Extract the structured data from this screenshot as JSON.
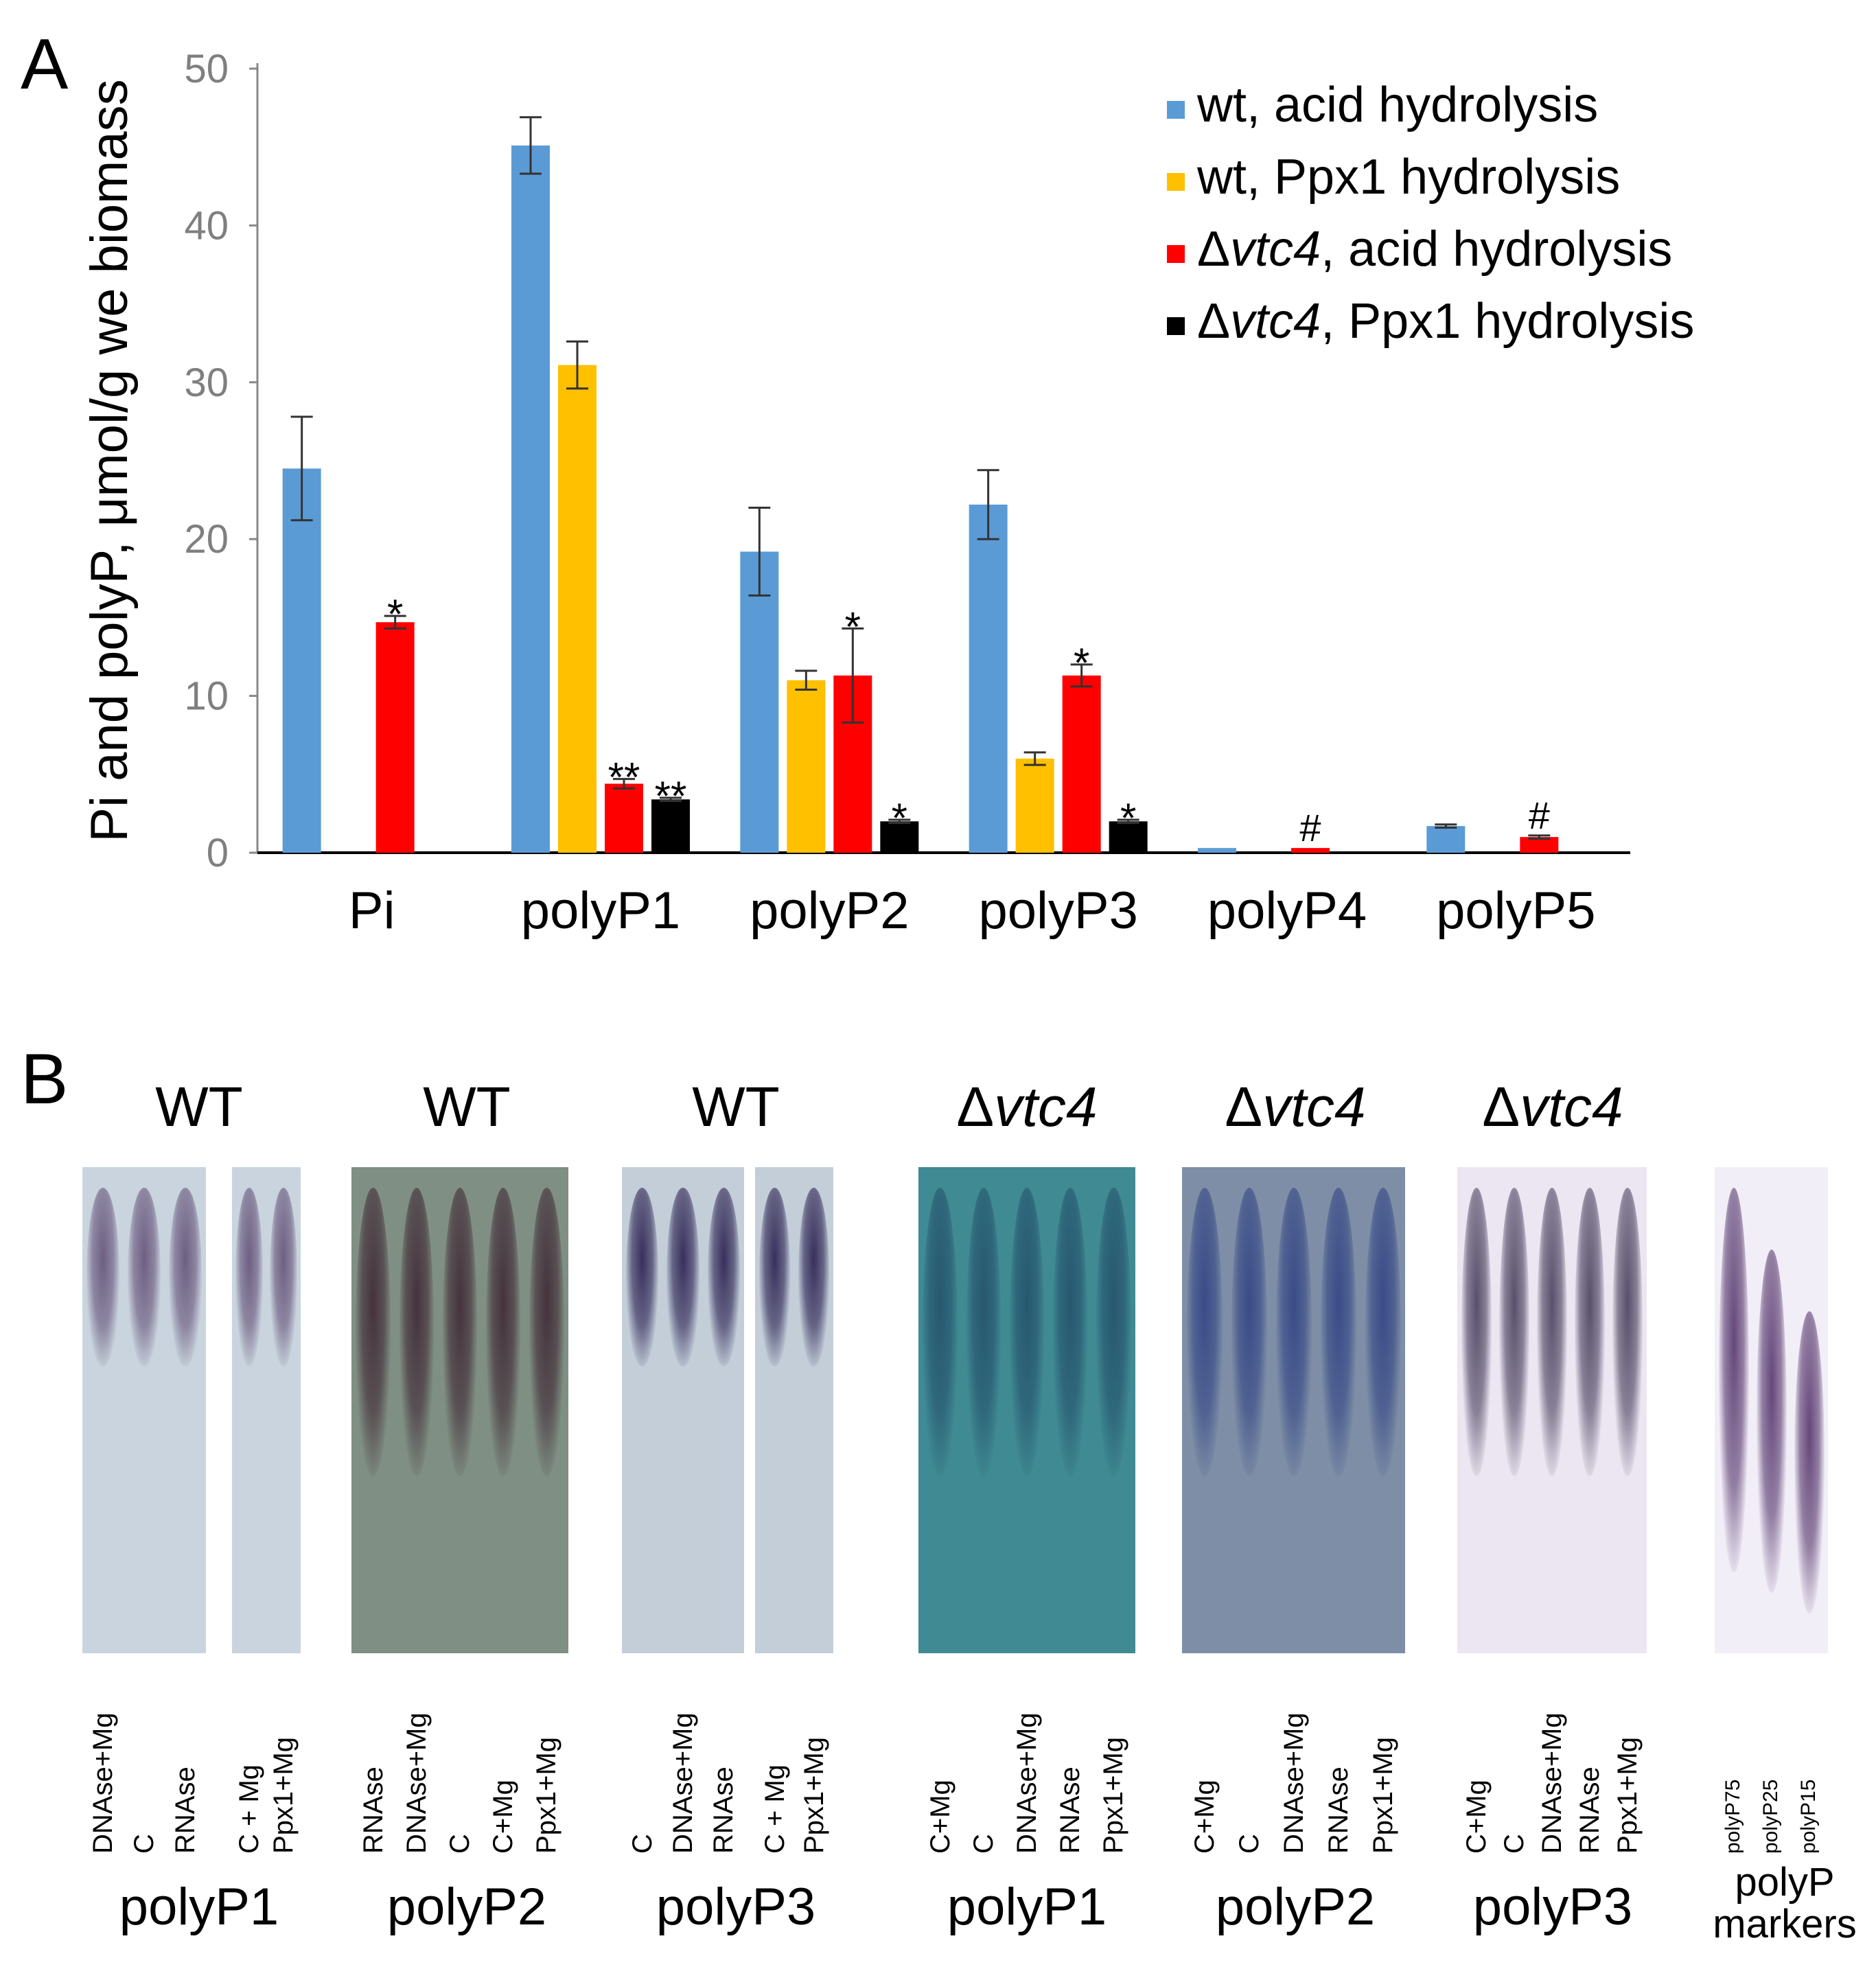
{
  "panel_a": {
    "letter": "A"
  },
  "panel_b": {
    "letter": "B"
  },
  "chart_data": {
    "type": "bar",
    "title": "",
    "xlabel": "",
    "ylabel": "Pi and polyP, μmol/g we biomass",
    "ylim": [
      0,
      50
    ],
    "yticks": [
      0,
      10,
      20,
      30,
      40,
      50
    ],
    "grid": false,
    "legend_position": "top-right",
    "categories": [
      "Pi",
      "polyP1",
      "polyP2",
      "polyP3",
      "polyP4",
      "polyP5"
    ],
    "series": [
      {
        "name": "wt, acid hydrolysis",
        "color": "#5b9bd5",
        "values": [
          24.5,
          45.1,
          19.2,
          22.2,
          0.3,
          1.7
        ],
        "errors": [
          3.3,
          1.8,
          2.8,
          2.2,
          0.0,
          0.1
        ],
        "annotations": [
          "",
          "",
          "",
          "",
          "",
          ""
        ]
      },
      {
        "name": "wt, Ppx1 hydrolysis",
        "color": "#ffc000",
        "values": [
          0,
          31.1,
          11.0,
          6.0,
          0,
          0
        ],
        "errors": [
          0,
          1.5,
          0.6,
          0.4,
          0,
          0
        ],
        "annotations": [
          "",
          "",
          "",
          "",
          "",
          ""
        ]
      },
      {
        "name": "Δvtc4, acid hydrolysis",
        "color": "#ff0000",
        "values": [
          14.7,
          4.4,
          11.3,
          11.3,
          0.3,
          1.0
        ],
        "errors": [
          0.4,
          0.3,
          3.0,
          0.7,
          0.0,
          0.1
        ],
        "annotations": [
          "*",
          "**",
          "*",
          "*",
          "#",
          "#"
        ]
      },
      {
        "name": "Δvtc4, Ppx1 hydrolysis",
        "color": "#000000",
        "values": [
          0,
          3.4,
          2.0,
          2.0,
          0,
          0
        ],
        "errors": [
          0,
          0.1,
          0.1,
          0.1,
          0,
          0
        ],
        "annotations": [
          "",
          "**",
          "*",
          "*",
          "",
          ""
        ]
      }
    ]
  },
  "gels": [
    {
      "title_plain": "WT",
      "title_italic": "",
      "sample": "polyP1",
      "lanes": [
        "DNAse+Mg",
        "C",
        "RNAse",
        "C + Mg",
        "Ppx1+Mg"
      ],
      "bg": "#c9d4de",
      "band": "#5e4a72"
    },
    {
      "title_plain": "WT",
      "title_italic": "",
      "sample": "polyP2",
      "lanes": [
        "RNAse",
        "DNAse+Mg",
        "C",
        "C+Mg",
        "Ppx1+Mg"
      ],
      "bg": "#7f8f83",
      "band": "#3b2230"
    },
    {
      "title_plain": "WT",
      "title_italic": "",
      "sample": "polyP3",
      "lanes": [
        "C",
        "DNAse+Mg",
        "RNAse",
        "C + Mg",
        "Ppx1+Mg"
      ],
      "bg": "#c3ced9",
      "band": "#1f1446"
    },
    {
      "title_plain": "Δ",
      "title_italic": "vtc4",
      "sample": "polyP1",
      "lanes": [
        "C+Mg",
        "C",
        "DNAse+Mg",
        "RNAse",
        "Ppx1+Mg"
      ],
      "bg": "#3f8a93",
      "band": "#234e68"
    },
    {
      "title_plain": "Δ",
      "title_italic": "vtc4",
      "sample": "polyP2",
      "lanes": [
        "C+Mg",
        "C",
        "DNAse+Mg",
        "RNAse",
        "Ppx1+Mg"
      ],
      "bg": "#7d8ea6",
      "band": "#2e3f82"
    },
    {
      "title_plain": "Δ",
      "title_italic": "vtc4",
      "sample": "polyP3",
      "lanes": [
        "C+Mg",
        "C",
        "DNAse+Mg",
        "RNAse",
        "Ppx1+Mg"
      ],
      "bg": "#ece6f2",
      "band": "#3e3452"
    },
    {
      "title_plain": "",
      "title_italic": "",
      "sample": "polyP markers",
      "lanes": [
        "polyP75",
        "polyP25",
        "polyP15"
      ],
      "bg": "#f2eef7",
      "band": "#4b2a63"
    }
  ]
}
